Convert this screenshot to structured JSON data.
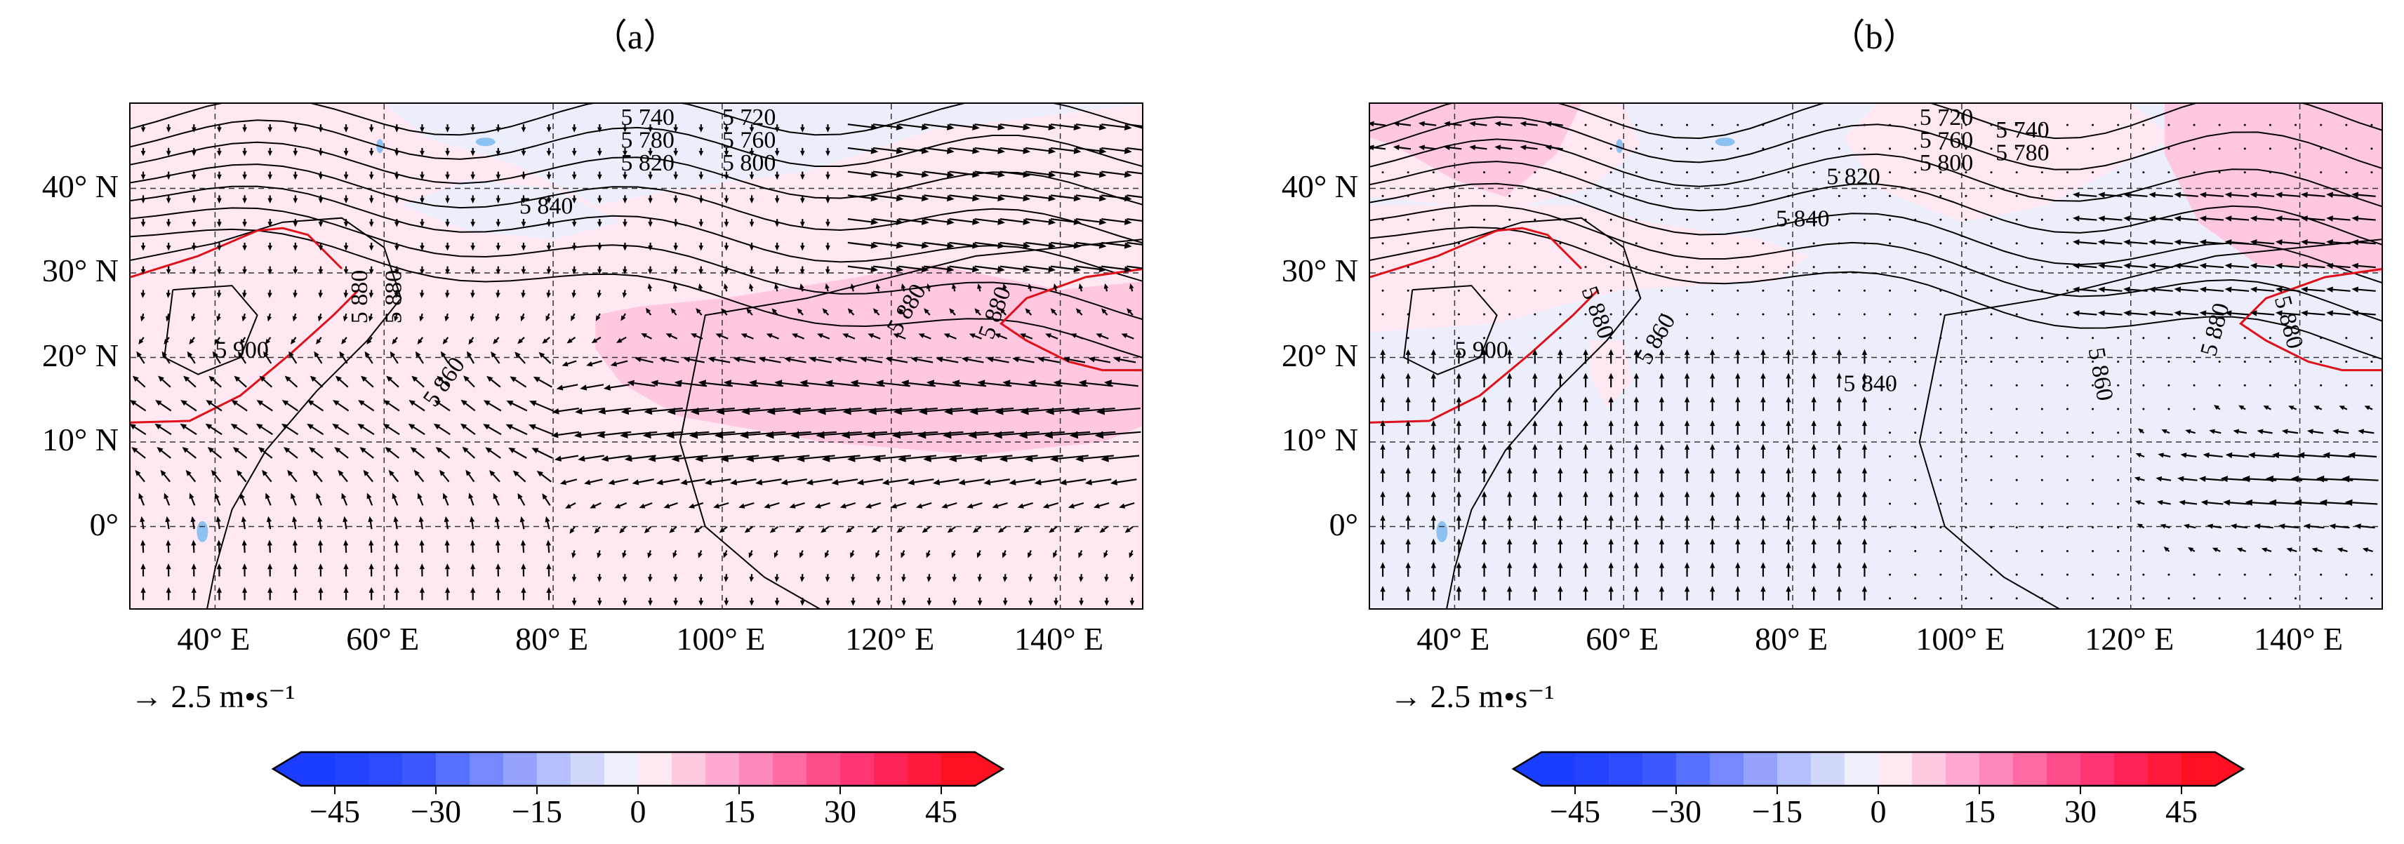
{
  "panels": [
    {
      "id": "a",
      "title": "（a）",
      "contour_labels": [
        "5 720",
        "5 740",
        "5 760",
        "5 780",
        "5 800",
        "5 820",
        "5 840",
        "5 880",
        "5 880",
        "5 860",
        "5 900",
        "5 880",
        "5 880"
      ],
      "shading": "positive"
    },
    {
      "id": "b",
      "title": "（b）",
      "contour_labels": [
        "5 720",
        "5 740",
        "5 760",
        "5 780",
        "5 800",
        "5 820",
        "5 840",
        "5 880",
        "5 860",
        "5 900",
        "5 840",
        "5 880",
        "5 880",
        "5 860"
      ],
      "shading": "mixed"
    }
  ],
  "axes": {
    "lat_ticks": [
      "40° N",
      "30° N",
      "20° N",
      "10° N",
      "0°"
    ],
    "lat_values": [
      40,
      30,
      20,
      10,
      0
    ],
    "lon_ticks": [
      "40° E",
      "60° E",
      "80° E",
      "100° E",
      "120° E",
      "140° E"
    ],
    "lon_values": [
      40,
      60,
      80,
      100,
      120,
      140
    ],
    "lon_range": [
      30,
      150
    ],
    "lat_range": [
      -10,
      50
    ]
  },
  "vector_scale": {
    "label": "2.5 m•s⁻¹",
    "value": 2.5
  },
  "colorbar": {
    "ticks": [
      "−45",
      "−30",
      "−15",
      "0",
      "15",
      "30",
      "45"
    ],
    "tick_values": [
      -45,
      -30,
      -15,
      0,
      15,
      30,
      45
    ],
    "range": [
      -50,
      50
    ],
    "colors": [
      "#1a3dff",
      "#2443ff",
      "#2e4bff",
      "#3c58ff",
      "#5670ff",
      "#7588ff",
      "#95a3ff",
      "#b5bfff",
      "#d2d8fb",
      "#eef0fd",
      "#ffe9f3",
      "#ffc9e2",
      "#ffa9d0",
      "#ff88bb",
      "#ff6aa3",
      "#ff4d8c",
      "#ff3672",
      "#ff2458",
      "#ff1a3c",
      "#ff1020"
    ]
  },
  "colors": {
    "contour": "#000000",
    "ridge": "#e0101a",
    "pos_light": "#ffe8f2",
    "pos_mid": "#ffc7e0",
    "pos_strong": "#ffb4d6",
    "neg_light": "#eceffb",
    "lake": "#8cc1f2"
  }
}
